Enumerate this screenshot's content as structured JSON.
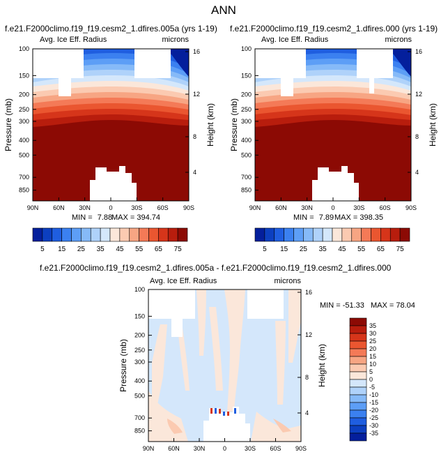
{
  "title": "ANN",
  "chart_data": [
    {
      "type": "heatmap",
      "title": "f.e21.F2000climo.f19_f19.cesm2_1.dfires.005a (yrs 1-19)",
      "subtitle_left": "Avg. Ice Eff. Radius",
      "subtitle_right": "microns",
      "ylabel": "Pressure (mb)",
      "ylabel_right": "Height (km)",
      "x_ticks": [
        "90N",
        "60N",
        "30N",
        "0",
        "30S",
        "60S",
        "90S"
      ],
      "y_ticks": [
        "100",
        "150",
        "200",
        "250",
        "300",
        "400",
        "500",
        "700",
        "850"
      ],
      "y_ticks_right": [
        "16",
        "12",
        "8",
        "4"
      ],
      "stats": {
        "min_label": "MIN = ",
        "min": "7.88",
        "max_label": "MAX = ",
        "max": "394.74"
      },
      "colorbar": {
        "labels": [
          "5",
          "15",
          "25",
          "35",
          "45",
          "55",
          "65",
          "75"
        ]
      },
      "blank_regions": [
        "upper-left box 100-150mb near 70N-50N",
        "upper box 100-130mb near 10S-40S",
        "lower box 550-850mb near 50N-20S"
      ]
    },
    {
      "type": "heatmap",
      "title": "f.e21.F2000climo.f19_f19.cesm2_1.dfires.000 (yrs 1-19)",
      "subtitle_left": "Avg. Ice Eff. Radius",
      "subtitle_right": "microns",
      "ylabel": "Pressure (mb)",
      "ylabel_right": "Height (km)",
      "x_ticks": [
        "90N",
        "60N",
        "30N",
        "0",
        "30S",
        "60S",
        "90S"
      ],
      "y_ticks": [
        "100",
        "150",
        "200",
        "250",
        "300",
        "400",
        "500",
        "700",
        "850"
      ],
      "y_ticks_right": [
        "16",
        "12",
        "8",
        "4"
      ],
      "stats": {
        "min_label": "MIN = ",
        "min": "7.89",
        "max_label": "MAX = ",
        "max": "398.35"
      },
      "colorbar": {
        "labels": [
          "5",
          "15",
          "25",
          "35",
          "45",
          "55",
          "65",
          "75"
        ]
      }
    },
    {
      "type": "heatmap",
      "title": "f.e21.F2000climo.f19_f19.cesm2_1.dfires.005a - f.e21.F2000climo.f19_f19.cesm2_1.dfires.000",
      "subtitle_left": "Avg. Ice Eff. Radius",
      "subtitle_right": "microns",
      "ylabel": "Pressure (mb)",
      "ylabel_right": "Height (km)",
      "x_ticks": [
        "90N",
        "60N",
        "30N",
        "0",
        "30S",
        "60S",
        "90S"
      ],
      "y_ticks": [
        "100",
        "150",
        "200",
        "250",
        "300",
        "400",
        "500",
        "700",
        "850"
      ],
      "y_ticks_right": [
        "16",
        "12",
        "8",
        "4"
      ],
      "stats": {
        "min_label": "MIN = ",
        "min": "-51.33",
        "max_label": "MAX = ",
        "max": "78.04"
      },
      "colorbar": {
        "labels": [
          "35",
          "30",
          "25",
          "20",
          "15",
          "10",
          "5",
          "0",
          "-5",
          "-10",
          "-15",
          "-20",
          "-25",
          "-30",
          "-35"
        ]
      }
    }
  ],
  "colors": {
    "abs_scale": [
      "#041f9c",
      "#0c3fc0",
      "#1f5ee0",
      "#3b80f0",
      "#5d9ef6",
      "#86baf8",
      "#afd2fa",
      "#d4e7fb",
      "#fbe7da",
      "#fbcab1",
      "#f7a583",
      "#f47a57",
      "#ea5630",
      "#d6351a",
      "#b81d0d",
      "#8c0a04"
    ],
    "diff_scale": [
      "#8c0a04",
      "#b81d0d",
      "#d6351a",
      "#ea5630",
      "#f47a57",
      "#f7a583",
      "#fbcab1",
      "#fbe7da",
      "#d4e7fb",
      "#afd2fa",
      "#86baf8",
      "#5d9ef6",
      "#3b80f0",
      "#1f5ee0",
      "#0c3fc0",
      "#041f9c"
    ]
  }
}
